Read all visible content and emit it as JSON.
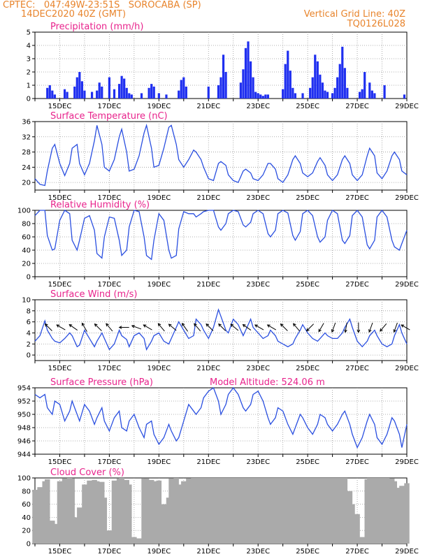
{
  "header": {
    "line1_left": "CPTEC:   047:49W-23:51S   SOROCABA (SP)",
    "line2_left": "14DEC2020 40Z (GMT)",
    "line1_right": "Vertical Grid Line: 40Z",
    "line2_right": "TQ0126L028"
  },
  "model_altitude": "Model Altitude: 524.06 m",
  "x_tick_labels": [
    "15DEC",
    "17DEC",
    "19DEC",
    "21DEC",
    "23DEC",
    "25DEC",
    "27DEC",
    "29DEC"
  ],
  "colors": {
    "line": "#2a4fe0",
    "bar": "#1f2ff0",
    "cloud": "#aaaaaa",
    "header": "#e8842c",
    "title": "#e8238c"
  },
  "chart_data": [
    {
      "type": "bar",
      "title": "Precipitation (mm/h)",
      "ylim": [
        0,
        5
      ],
      "yticks": [
        0,
        1,
        2,
        3,
        4,
        5
      ],
      "x": [
        0.5,
        0.6,
        0.7,
        0.8,
        1.2,
        1.3,
        1.6,
        1.7,
        1.8,
        1.9,
        2.0,
        2.3,
        2.5,
        2.6,
        2.7,
        3.0,
        3.2,
        3.4,
        3.5,
        3.6,
        3.7,
        3.8,
        3.9,
        4.3,
        4.6,
        4.7,
        4.8,
        5.0,
        5.3,
        5.8,
        5.9,
        6.0,
        6.1,
        7.0,
        7.4,
        7.5,
        7.6,
        7.7,
        8.3,
        8.4,
        8.5,
        8.6,
        8.7,
        8.8,
        8.9,
        9.0,
        9.1,
        9.2,
        9.3,
        9.4,
        10.0,
        10.1,
        10.2,
        10.3,
        10.4,
        10.5,
        10.8,
        11.1,
        11.2,
        11.3,
        11.4,
        11.5,
        11.6,
        11.7,
        11.8,
        12.0,
        12.1,
        12.2,
        12.3,
        12.4,
        12.5,
        12.6,
        13.1,
        13.2,
        13.3,
        13.5,
        13.6,
        13.7,
        14.1,
        14.9
      ],
      "values": [
        0.8,
        1.0,
        0.6,
        0.3,
        0.7,
        0.5,
        0.9,
        1.6,
        2.0,
        1.3,
        0.6,
        0.5,
        0.6,
        1.2,
        0.9,
        1.6,
        0.7,
        1.1,
        1.7,
        1.5,
        0.8,
        0.4,
        0.3,
        0.4,
        0.8,
        1.1,
        0.9,
        0.4,
        0.3,
        0.6,
        1.4,
        1.6,
        0.9,
        0.9,
        1.0,
        1.6,
        3.3,
        2.0,
        1.2,
        2.2,
        3.8,
        4.3,
        2.8,
        1.6,
        0.5,
        0.4,
        0.3,
        0.2,
        0.3,
        0.3,
        0.7,
        2.6,
        3.6,
        2.1,
        0.8,
        0.4,
        0.4,
        0.8,
        1.6,
        3.3,
        2.8,
        1.8,
        1.2,
        0.6,
        0.5,
        0.4,
        0.8,
        1.6,
        2.6,
        3.9,
        2.3,
        0.8,
        0.5,
        0.7,
        2.0,
        1.2,
        0.6,
        0.4,
        1.0,
        0.3
      ]
    },
    {
      "type": "line",
      "title": "Surface Temperature (nC)",
      "ylim": [
        18,
        36
      ],
      "yticks": [
        20,
        24,
        28,
        32,
        36
      ],
      "x": [
        0.0,
        0.2,
        0.4,
        0.5,
        0.7,
        0.8,
        1.0,
        1.2,
        1.4,
        1.5,
        1.7,
        1.8,
        2.0,
        2.2,
        2.4,
        2.5,
        2.7,
        2.8,
        3.0,
        3.2,
        3.4,
        3.5,
        3.7,
        3.8,
        4.0,
        4.2,
        4.4,
        4.5,
        4.7,
        4.8,
        5.0,
        5.2,
        5.4,
        5.5,
        5.7,
        5.8,
        6.0,
        6.2,
        6.4,
        6.5,
        6.7,
        6.8,
        7.0,
        7.2,
        7.4,
        7.5,
        7.7,
        7.8,
        8.0,
        8.2,
        8.4,
        8.5,
        8.7,
        8.8,
        9.0,
        9.2,
        9.4,
        9.5,
        9.7,
        9.8,
        10.0,
        10.2,
        10.4,
        10.5,
        10.7,
        10.8,
        11.0,
        11.2,
        11.4,
        11.5,
        11.7,
        11.8,
        12.0,
        12.2,
        12.4,
        12.5,
        12.7,
        12.8,
        13.0,
        13.2,
        13.4,
        13.5,
        13.7,
        13.8,
        14.0,
        14.2,
        14.4,
        14.5,
        14.7,
        14.8,
        15.0
      ],
      "values": [
        21.0,
        19.5,
        19.2,
        23.0,
        29.0,
        30.0,
        25.0,
        21.8,
        25.0,
        29.0,
        30.0,
        25.0,
        22.0,
        25.0,
        31.0,
        35.0,
        30.0,
        24.0,
        23.0,
        26.0,
        32.0,
        34.0,
        28.0,
        23.0,
        23.5,
        27.0,
        33.0,
        35.0,
        29.0,
        24.0,
        24.5,
        29.0,
        34.5,
        35.0,
        30.0,
        26.0,
        24.0,
        26.0,
        28.5,
        28.0,
        26.0,
        24.0,
        21.0,
        20.5,
        25.0,
        25.5,
        24.5,
        22.0,
        20.5,
        20.0,
        23.0,
        23.5,
        22.5,
        21.0,
        20.5,
        22.0,
        25.0,
        25.0,
        23.5,
        21.0,
        20.0,
        22.0,
        26.0,
        27.0,
        25.0,
        22.5,
        21.5,
        22.5,
        25.5,
        26.5,
        24.5,
        22.0,
        20.5,
        22.0,
        26.0,
        27.0,
        25.0,
        22.0,
        20.5,
        22.0,
        27.0,
        29.0,
        27.0,
        22.5,
        21.0,
        23.0,
        27.0,
        28.0,
        26.0,
        23.0,
        22.0
      ]
    },
    {
      "type": "line",
      "title": "Relative Humidity (%)",
      "ylim": [
        0,
        100
      ],
      "yticks": [
        0,
        20,
        40,
        60,
        80,
        100
      ],
      "x": [
        0.0,
        0.2,
        0.4,
        0.5,
        0.7,
        0.8,
        1.0,
        1.2,
        1.4,
        1.5,
        1.7,
        1.8,
        2.0,
        2.2,
        2.4,
        2.5,
        2.7,
        2.8,
        3.0,
        3.2,
        3.4,
        3.5,
        3.7,
        3.8,
        4.0,
        4.2,
        4.4,
        4.5,
        4.7,
        4.8,
        5.0,
        5.2,
        5.4,
        5.5,
        5.7,
        5.8,
        6.0,
        6.2,
        6.4,
        6.5,
        6.7,
        6.8,
        7.0,
        7.2,
        7.4,
        7.5,
        7.7,
        7.8,
        8.0,
        8.2,
        8.4,
        8.5,
        8.7,
        8.8,
        9.0,
        9.2,
        9.4,
        9.5,
        9.7,
        9.8,
        10.0,
        10.2,
        10.4,
        10.5,
        10.7,
        10.8,
        11.0,
        11.2,
        11.4,
        11.5,
        11.7,
        11.8,
        12.0,
        12.2,
        12.4,
        12.5,
        12.7,
        12.8,
        13.0,
        13.2,
        13.4,
        13.5,
        13.7,
        13.8,
        14.0,
        14.2,
        14.4,
        14.5,
        14.7,
        14.8,
        15.0
      ],
      "values": [
        92.0,
        100.0,
        100.0,
        62.0,
        40.0,
        42.0,
        85.0,
        100.0,
        95.0,
        55.0,
        40.0,
        55.0,
        88.0,
        92.0,
        70.0,
        35.0,
        28.0,
        60.0,
        90.0,
        88.0,
        55.0,
        32.0,
        40.0,
        75.0,
        100.0,
        98.0,
        60.0,
        32.0,
        26.0,
        55.0,
        95.0,
        85.0,
        40.0,
        28.0,
        32.0,
        72.0,
        98.0,
        95.0,
        95.0,
        90.0,
        95.0,
        98.0,
        100.0,
        100.0,
        75.0,
        70.0,
        80.0,
        95.0,
        100.0,
        98.0,
        78.0,
        75.0,
        82.0,
        95.0,
        100.0,
        95.0,
        65.0,
        60.0,
        70.0,
        95.0,
        100.0,
        96.0,
        62.0,
        55.0,
        68.0,
        95.0,
        100.0,
        92.0,
        60.0,
        52.0,
        60.0,
        85.0,
        100.0,
        95.0,
        55.0,
        50.0,
        62.0,
        92.0,
        100.0,
        90.0,
        48.0,
        42.0,
        55.0,
        90.0,
        100.0,
        90.0,
        55.0,
        45.0,
        40.0,
        50.0,
        70.0
      ]
    },
    {
      "type": "line",
      "title": "Surface Wind (m/s)",
      "ylim": [
        -1,
        10
      ],
      "yticks": [
        0,
        2,
        4,
        6,
        8,
        10
      ],
      "x": [
        0.0,
        0.2,
        0.4,
        0.5,
        0.7,
        0.8,
        1.0,
        1.2,
        1.4,
        1.5,
        1.7,
        1.8,
        2.0,
        2.2,
        2.4,
        2.5,
        2.7,
        2.8,
        3.0,
        3.2,
        3.4,
        3.5,
        3.7,
        3.8,
        4.0,
        4.2,
        4.4,
        4.5,
        4.7,
        4.8,
        5.0,
        5.2,
        5.4,
        5.5,
        5.7,
        5.8,
        6.0,
        6.2,
        6.4,
        6.5,
        6.7,
        6.8,
        7.0,
        7.2,
        7.4,
        7.5,
        7.7,
        7.8,
        8.0,
        8.2,
        8.4,
        8.5,
        8.7,
        8.8,
        9.0,
        9.2,
        9.4,
        9.5,
        9.7,
        9.8,
        10.0,
        10.2,
        10.4,
        10.5,
        10.7,
        10.8,
        11.0,
        11.2,
        11.4,
        11.5,
        11.7,
        11.8,
        12.0,
        12.2,
        12.4,
        12.5,
        12.7,
        12.8,
        13.0,
        13.2,
        13.4,
        13.5,
        13.7,
        13.8,
        14.0,
        14.2,
        14.4,
        14.5,
        14.7,
        14.8,
        15.0
      ],
      "values": [
        2.5,
        3.5,
        6.2,
        4.5,
        3.0,
        2.5,
        2.2,
        3.0,
        4.0,
        3.5,
        1.5,
        1.8,
        4.5,
        3.0,
        1.5,
        2.5,
        4.0,
        3.0,
        1.0,
        2.0,
        4.5,
        3.5,
        2.8,
        1.5,
        3.5,
        4.0,
        3.0,
        1.0,
        2.5,
        3.5,
        4.0,
        2.5,
        2.0,
        3.0,
        5.0,
        6.0,
        4.5,
        3.0,
        3.5,
        6.5,
        5.5,
        4.5,
        3.0,
        5.0,
        8.2,
        7.0,
        4.5,
        4.0,
        6.5,
        5.5,
        3.5,
        4.5,
        6.5,
        5.0,
        4.0,
        3.0,
        3.5,
        4.5,
        3.5,
        2.5,
        2.0,
        1.5,
        2.0,
        3.0,
        4.5,
        5.5,
        4.0,
        3.0,
        2.5,
        3.0,
        4.0,
        3.5,
        3.0,
        3.0,
        4.0,
        5.0,
        6.5,
        5.0,
        2.5,
        1.5,
        2.5,
        3.5,
        4.5,
        3.5,
        2.0,
        1.5,
        2.0,
        3.5,
        5.5,
        4.0,
        2.0
      ]
    },
    {
      "type": "line",
      "title": "Surface Pressure (hPa)",
      "ylim": [
        944,
        954
      ],
      "yticks": [
        944,
        946,
        948,
        950,
        952,
        954
      ],
      "x": [
        0.0,
        0.2,
        0.4,
        0.5,
        0.7,
        0.8,
        1.0,
        1.2,
        1.4,
        1.5,
        1.7,
        1.8,
        2.0,
        2.2,
        2.4,
        2.5,
        2.7,
        2.8,
        3.0,
        3.2,
        3.4,
        3.5,
        3.7,
        3.8,
        4.0,
        4.2,
        4.4,
        4.5,
        4.7,
        4.8,
        5.0,
        5.2,
        5.4,
        5.5,
        5.7,
        5.8,
        6.0,
        6.2,
        6.4,
        6.5,
        6.7,
        6.8,
        7.0,
        7.2,
        7.4,
        7.5,
        7.7,
        7.8,
        8.0,
        8.2,
        8.4,
        8.5,
        8.7,
        8.8,
        9.0,
        9.2,
        9.4,
        9.5,
        9.7,
        9.8,
        10.0,
        10.2,
        10.4,
        10.5,
        10.7,
        10.8,
        11.0,
        11.2,
        11.4,
        11.5,
        11.7,
        11.8,
        12.0,
        12.2,
        12.4,
        12.5,
        12.7,
        12.8,
        13.0,
        13.2,
        13.4,
        13.5,
        13.7,
        13.8,
        14.0,
        14.2,
        14.4,
        14.5,
        14.7,
        14.8,
        15.0
      ],
      "values": [
        953.0,
        952.5,
        953.0,
        951.0,
        950.0,
        952.0,
        951.5,
        949.0,
        950.5,
        952.0,
        950.0,
        949.0,
        951.5,
        950.5,
        948.5,
        949.5,
        951.0,
        949.0,
        947.5,
        949.5,
        950.5,
        948.0,
        947.5,
        949.0,
        950.0,
        948.0,
        946.5,
        948.5,
        949.0,
        947.0,
        945.5,
        946.5,
        948.5,
        947.5,
        946.0,
        946.5,
        949.0,
        951.5,
        950.5,
        950.0,
        951.0,
        952.5,
        953.5,
        954.0,
        952.0,
        950.0,
        951.5,
        953.0,
        954.0,
        953.0,
        951.0,
        950.5,
        951.5,
        953.0,
        953.5,
        952.0,
        949.5,
        948.5,
        949.5,
        951.0,
        950.5,
        948.5,
        947.0,
        948.0,
        950.0,
        949.5,
        948.0,
        947.0,
        948.5,
        950.0,
        949.5,
        948.5,
        947.5,
        948.5,
        950.0,
        950.5,
        948.5,
        947.0,
        945.0,
        946.5,
        949.0,
        950.0,
        948.5,
        946.5,
        945.5,
        947.0,
        949.5,
        949.0,
        947.0,
        945.0,
        948.5
      ]
    },
    {
      "type": "bar",
      "title": "Cloud Cover (%)",
      "ylim": [
        0,
        100
      ],
      "yticks": [
        0,
        20,
        40,
        60,
        80,
        100
      ],
      "x": [
        0.0,
        0.2,
        0.4,
        0.5,
        0.7,
        0.8,
        1.0,
        1.2,
        1.4,
        1.5,
        1.7,
        1.8,
        2.0,
        2.2,
        2.4,
        2.5,
        2.7,
        2.8,
        3.0,
        3.2,
        3.4,
        3.5,
        3.7,
        3.8,
        4.0,
        4.2,
        4.4,
        4.5,
        4.7,
        4.8,
        5.0,
        5.2,
        5.4,
        5.5,
        5.7,
        5.8,
        6.0,
        6.2,
        6.4,
        6.5,
        6.7,
        6.8,
        7.0,
        7.2,
        7.4,
        7.5,
        7.7,
        7.8,
        8.0,
        8.2,
        8.4,
        8.5,
        8.7,
        8.8,
        9.0,
        9.2,
        9.4,
        9.5,
        9.7,
        9.8,
        10.0,
        10.2,
        10.4,
        10.5,
        10.7,
        10.8,
        11.0,
        11.2,
        11.4,
        11.5,
        11.7,
        11.8,
        12.0,
        12.2,
        12.4,
        12.5,
        12.7,
        12.8,
        13.0,
        13.2,
        13.4,
        13.5,
        13.7,
        13.8,
        14.0,
        14.2,
        14.4,
        14.5,
        14.7,
        14.8,
        15.0
      ],
      "values": [
        82.0,
        86.0,
        95.0,
        98.0,
        35.0,
        30.0,
        95.0,
        99.0,
        100.0,
        99.0,
        40.0,
        55.0,
        90.0,
        96.0,
        97.0,
        95.0,
        94.0,
        70.0,
        20.0,
        96.0,
        99.0,
        100.0,
        97.0,
        90.0,
        10.0,
        8.0,
        99.0,
        99.0,
        97.0,
        95.0,
        96.0,
        60.0,
        70.0,
        99.0,
        100.0,
        90.0,
        95.0,
        99.0,
        100.0,
        100.0,
        100.0,
        100.0,
        100.0,
        100.0,
        100.0,
        100.0,
        100.0,
        100.0,
        100.0,
        100.0,
        100.0,
        100.0,
        100.0,
        100.0,
        100.0,
        100.0,
        100.0,
        100.0,
        100.0,
        100.0,
        100.0,
        100.0,
        100.0,
        100.0,
        100.0,
        100.0,
        100.0,
        100.0,
        100.0,
        100.0,
        100.0,
        100.0,
        100.0,
        100.0,
        100.0,
        100.0,
        80.0,
        60.0,
        45.0,
        10.0,
        98.0,
        100.0,
        100.0,
        100.0,
        100.0,
        100.0,
        99.0,
        95.0,
        85.0,
        88.0,
        92.0
      ]
    }
  ],
  "wind_arrows": [
    {
      "x": 0.55,
      "dir_deg": 315
    },
    {
      "x": 1.05,
      "dir_deg": 300
    },
    {
      "x": 1.55,
      "dir_deg": 305
    },
    {
      "x": 2.0,
      "dir_deg": 330
    },
    {
      "x": 2.55,
      "dir_deg": 315
    },
    {
      "x": 3.0,
      "dir_deg": 320
    },
    {
      "x": 3.6,
      "dir_deg": 270
    },
    {
      "x": 4.1,
      "dir_deg": 290
    },
    {
      "x": 4.55,
      "dir_deg": 300
    },
    {
      "x": 5.1,
      "dir_deg": 320
    },
    {
      "x": 5.55,
      "dir_deg": 310
    },
    {
      "x": 6.05,
      "dir_deg": 325
    },
    {
      "x": 6.55,
      "dir_deg": 320
    },
    {
      "x": 7.05,
      "dir_deg": 315
    },
    {
      "x": 7.55,
      "dir_deg": 315
    },
    {
      "x": 8.05,
      "dir_deg": 310
    },
    {
      "x": 8.55,
      "dir_deg": 305
    },
    {
      "x": 9.05,
      "dir_deg": 300
    },
    {
      "x": 9.55,
      "dir_deg": 300
    },
    {
      "x": 10.05,
      "dir_deg": 315
    },
    {
      "x": 10.55,
      "dir_deg": 320
    },
    {
      "x": 11.1,
      "dir_deg": 225
    },
    {
      "x": 11.55,
      "dir_deg": 210
    },
    {
      "x": 12.05,
      "dir_deg": 200
    },
    {
      "x": 12.55,
      "dir_deg": 190
    },
    {
      "x": 13.05,
      "dir_deg": 180
    },
    {
      "x": 13.55,
      "dir_deg": 200
    },
    {
      "x": 14.05,
      "dir_deg": 220
    },
    {
      "x": 14.55,
      "dir_deg": 200
    },
    {
      "x": 14.95,
      "dir_deg": 300
    }
  ]
}
